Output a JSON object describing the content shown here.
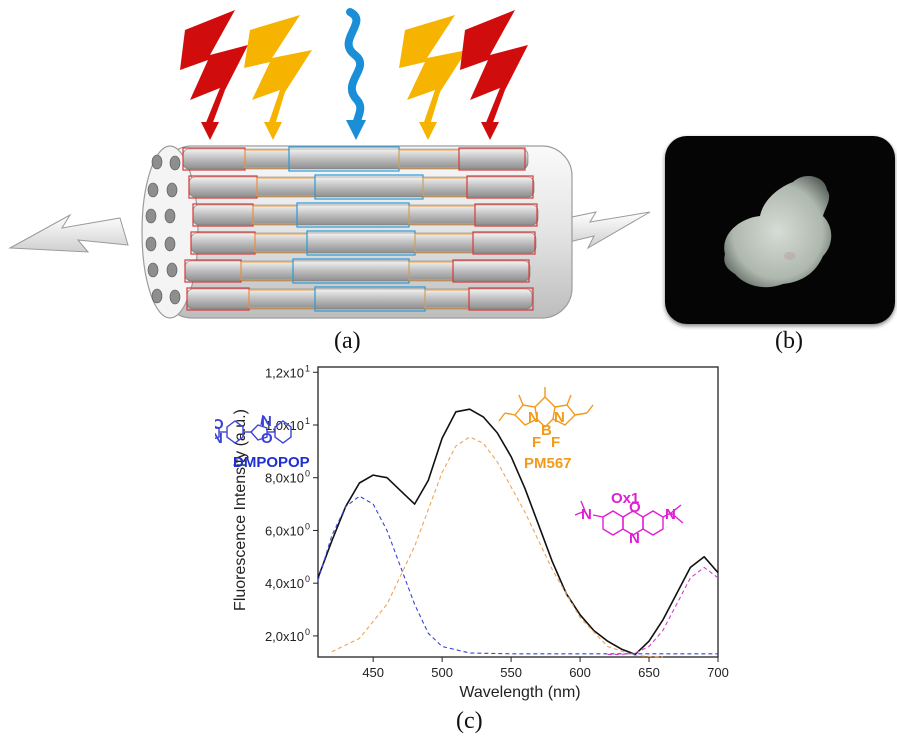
{
  "panel_labels": {
    "a": "(a)",
    "b": "(b)",
    "c": "(c)"
  },
  "molecules": {
    "dmpopop": {
      "name": "DMPOPOP",
      "color": "#1f2fd0",
      "atoms": [
        "N",
        "N",
        "O",
        "O"
      ]
    },
    "pm567": {
      "name": "PM567",
      "color": "#f29a1a",
      "atoms": [
        "N",
        "N",
        "B",
        "F",
        "F"
      ]
    },
    "ox1": {
      "name": "Ox1",
      "color": "#e01fd4",
      "atoms": [
        "N",
        "O",
        "N",
        "N"
      ]
    }
  },
  "colors": {
    "red": "#d00c0c",
    "orange": "#f6b400",
    "blue": "#1a8fd8",
    "cylinder": "#e2e2e2",
    "black_line": "#111111",
    "blue_dash": "#3a43d6",
    "orange_dash": "#f0a355",
    "magenta_dash": "#d63ad0"
  },
  "chart_data": {
    "type": "line",
    "xlabel": "Wavelength (nm)",
    "ylabel": "Fluorescence Intensity (a.u.)",
    "xlim": [
      410,
      700
    ],
    "ylim": [
      1.2,
      12.2
    ],
    "x_ticks": [
      450,
      500,
      550,
      600,
      650,
      700
    ],
    "y_ticks": [
      {
        "value": 2,
        "label": "2,0x10",
        "exp": "0"
      },
      {
        "value": 4,
        "label": "4,0x10",
        "exp": "0"
      },
      {
        "value": 6,
        "label": "6,0x10",
        "exp": "0"
      },
      {
        "value": 8,
        "label": "8,0x10",
        "exp": "0"
      },
      {
        "value": 10,
        "label": "1,0x10",
        "exp": "1"
      },
      {
        "value": 12,
        "label": "1,2x10",
        "exp": "1"
      }
    ],
    "grid": false,
    "series": [
      {
        "style": "solid",
        "color": "#111111",
        "x": [
          410,
          420,
          430,
          440,
          450,
          460,
          470,
          480,
          490,
          500,
          510,
          520,
          530,
          540,
          550,
          560,
          570,
          580,
          590,
          600,
          610,
          620,
          630,
          640,
          650,
          660,
          670,
          680,
          690,
          700
        ],
        "y": [
          4.2,
          5.6,
          6.9,
          7.8,
          8.1,
          8.0,
          7.5,
          7.0,
          7.9,
          9.5,
          10.5,
          10.6,
          10.3,
          9.7,
          8.8,
          7.6,
          6.2,
          4.8,
          3.6,
          2.8,
          2.2,
          1.8,
          1.5,
          1.3,
          1.8,
          2.6,
          3.6,
          4.6,
          5.0,
          4.4
        ]
      },
      {
        "style": "dashed",
        "color": "#3a43d6",
        "x": [
          410,
          420,
          430,
          440,
          450,
          460,
          470,
          480,
          490,
          500,
          520,
          550,
          600,
          650,
          700
        ],
        "y": [
          4.1,
          5.8,
          6.9,
          7.3,
          7.0,
          6.0,
          4.6,
          3.2,
          2.1,
          1.6,
          1.35,
          1.32,
          1.32,
          1.32,
          1.32
        ]
      },
      {
        "style": "dashed",
        "color": "#f0a355",
        "x": [
          420,
          440,
          460,
          480,
          500,
          510,
          520,
          530,
          540,
          560,
          580,
          600,
          620,
          640,
          660
        ],
        "y": [
          1.4,
          1.9,
          3.2,
          5.4,
          8.2,
          9.2,
          9.55,
          9.3,
          8.6,
          6.7,
          4.5,
          2.7,
          1.6,
          1.25,
          1.2
        ]
      },
      {
        "style": "dashed",
        "color": "#d63ad0",
        "x": [
          620,
          630,
          640,
          650,
          660,
          670,
          680,
          690,
          700
        ],
        "y": [
          1.3,
          1.3,
          1.35,
          1.6,
          2.2,
          3.2,
          4.2,
          4.6,
          4.2
        ]
      }
    ]
  }
}
